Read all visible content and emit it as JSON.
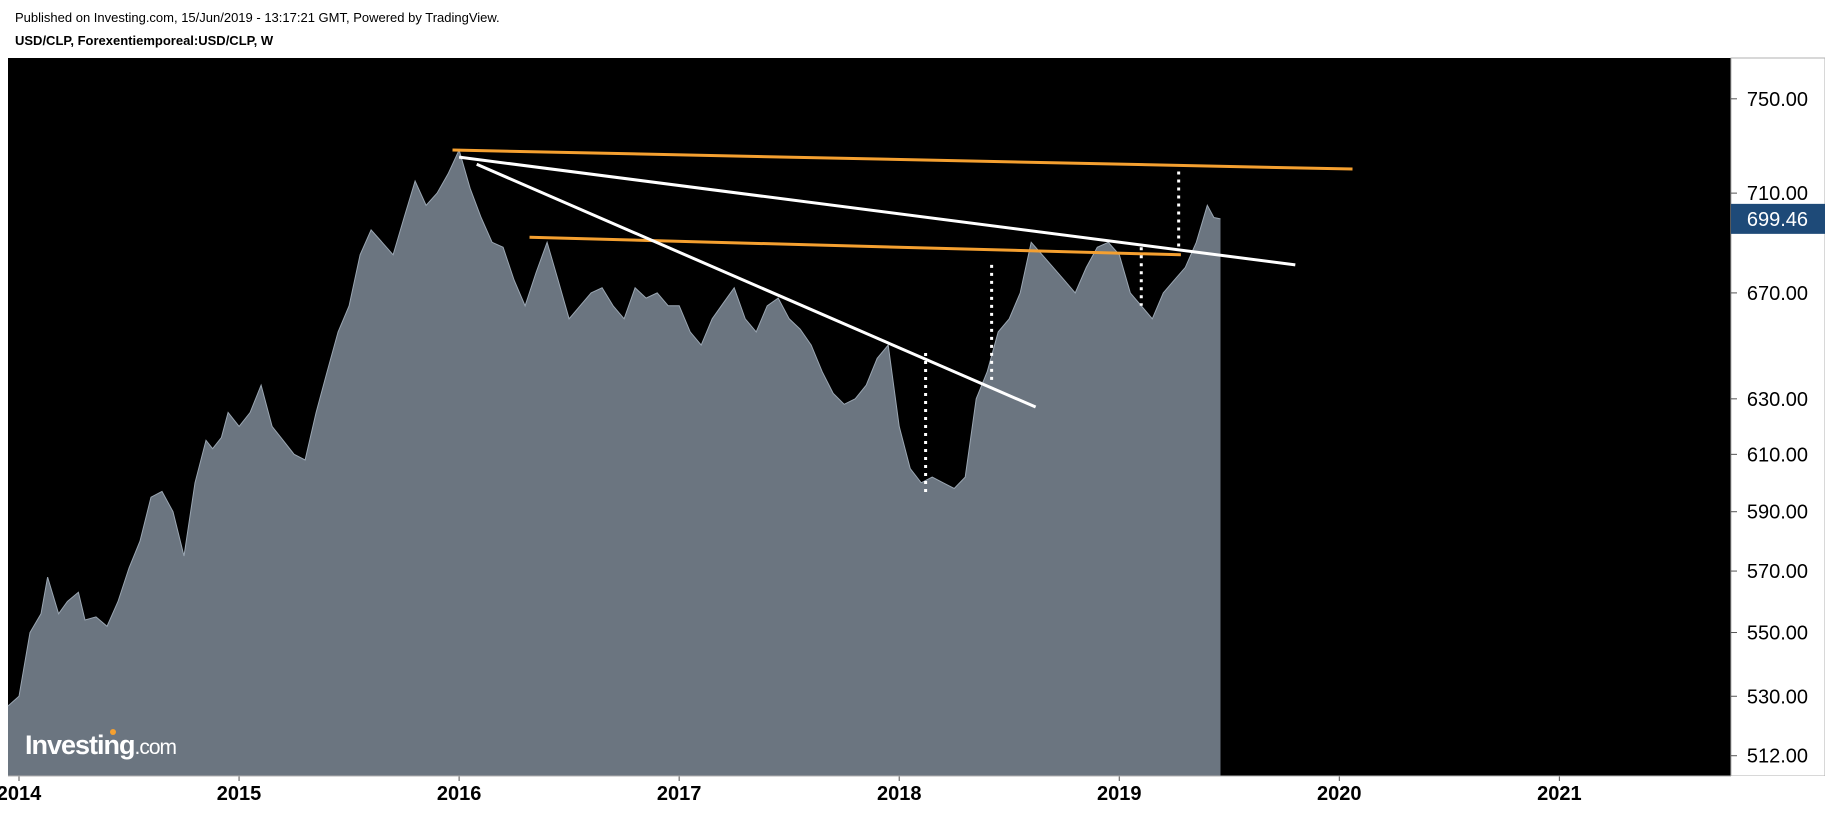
{
  "header": {
    "published": "Published on Investing.com, 15/Jun/2019 - 13:17:21 GMT, Powered by TradingView.",
    "symbol": "USD/CLP, Forexentiemporeal:USD/CLP, W"
  },
  "logo": {
    "text_main": "Investing",
    "text_suffix": ".com"
  },
  "colors": {
    "background": "#000000",
    "area_fill": "#6b7580",
    "trend_orange": "#f5a030",
    "trend_white": "#ffffff",
    "price_badge": "#1e4a78"
  },
  "chart_data": {
    "type": "area",
    "symbol": "USD/CLP",
    "interval": "W",
    "x_range": [
      2013.95,
      2021.78
    ],
    "ylim": [
      506,
      768
    ],
    "y_scale": "log",
    "grid": false,
    "x_ticks": [
      "2014",
      "2015",
      "2016",
      "2017",
      "2018",
      "2019",
      "2020",
      "2021"
    ],
    "y_ticks": [
      "750.00",
      "710.00",
      "670.00",
      "630.00",
      "610.00",
      "590.00",
      "570.00",
      "550.00",
      "530.00",
      "512.00"
    ],
    "last_price": "699.46",
    "series": [
      {
        "x": [
          2013.95,
          2014.0,
          2014.05,
          2014.1,
          2014.13,
          2014.18,
          2014.22,
          2014.27,
          2014.3,
          2014.35,
          2014.4,
          2014.45,
          2014.5,
          2014.55,
          2014.6,
          2014.65,
          2014.7,
          2014.75,
          2014.8,
          2014.85,
          2014.88,
          2014.92,
          2014.95,
          2015.0,
          2015.05,
          2015.1,
          2015.15,
          2015.2,
          2015.25,
          2015.3,
          2015.35,
          2015.4,
          2015.45,
          2015.5,
          2015.55,
          2015.6,
          2015.65,
          2015.7,
          2015.75,
          2015.8,
          2015.85,
          2015.9,
          2015.95,
          2016.0,
          2016.05,
          2016.1,
          2016.15,
          2016.2,
          2016.25,
          2016.3,
          2016.35,
          2016.4,
          2016.45,
          2016.5,
          2016.55,
          2016.6,
          2016.65,
          2016.7,
          2016.75,
          2016.8,
          2016.85,
          2016.9,
          2016.95,
          2017.0,
          2017.05,
          2017.1,
          2017.15,
          2017.2,
          2017.25,
          2017.3,
          2017.35,
          2017.4,
          2017.45,
          2017.5,
          2017.55,
          2017.6,
          2017.65,
          2017.7,
          2017.75,
          2017.8,
          2017.85,
          2017.9,
          2017.95,
          2018.0,
          2018.05,
          2018.1,
          2018.15,
          2018.2,
          2018.25,
          2018.3,
          2018.35,
          2018.4,
          2018.45,
          2018.5,
          2018.55,
          2018.6,
          2018.65,
          2018.7,
          2018.75,
          2018.8,
          2018.85,
          2018.9,
          2018.95,
          2019.0,
          2019.05,
          2019.1,
          2019.15,
          2019.2,
          2019.25,
          2019.3,
          2019.35,
          2019.4,
          2019.43,
          2019.46
        ],
        "values": [
          527,
          530,
          550,
          556,
          568,
          556,
          560,
          563,
          554,
          555,
          552,
          560,
          571,
          580,
          595,
          597,
          590,
          575,
          600,
          615,
          612,
          616,
          625,
          620,
          625,
          635,
          620,
          615,
          610,
          608,
          625,
          640,
          655,
          665,
          685,
          695,
          690,
          685,
          700,
          715,
          705,
          710,
          718,
          728,
          712,
          700,
          690,
          688,
          675,
          665,
          678,
          690,
          675,
          660,
          665,
          670,
          672,
          665,
          660,
          672,
          668,
          670,
          665,
          665,
          655,
          650,
          660,
          666,
          672,
          660,
          655,
          665,
          668,
          660,
          656,
          650,
          640,
          632,
          628,
          630,
          635,
          645,
          650,
          620,
          605,
          600,
          602,
          600,
          598,
          602,
          630,
          640,
          655,
          660,
          670,
          690,
          685,
          680,
          675,
          670,
          680,
          688,
          690,
          685,
          670,
          665,
          660,
          670,
          675,
          680,
          690,
          705,
          700,
          699.46
        ]
      }
    ],
    "trend_lines": [
      {
        "color": "orange",
        "from": [
          2015.97,
          728
        ],
        "to": [
          2020.06,
          720
        ]
      },
      {
        "color": "orange",
        "from": [
          2016.32,
          692
        ],
        "to": [
          2019.28,
          685
        ]
      },
      {
        "color": "white",
        "from": [
          2016.0,
          725
        ],
        "to": [
          2019.8,
          681
        ]
      },
      {
        "color": "white",
        "from": [
          2016.08,
          722
        ],
        "to": [
          2018.62,
          627
        ]
      }
    ],
    "vertical_markers": [
      {
        "x": 2018.12,
        "from": 596,
        "to": 647
      },
      {
        "x": 2018.42,
        "from": 636,
        "to": 681
      },
      {
        "x": 2019.1,
        "from": 665,
        "to": 688
      },
      {
        "x": 2019.27,
        "from": 688,
        "to": 719
      }
    ]
  }
}
